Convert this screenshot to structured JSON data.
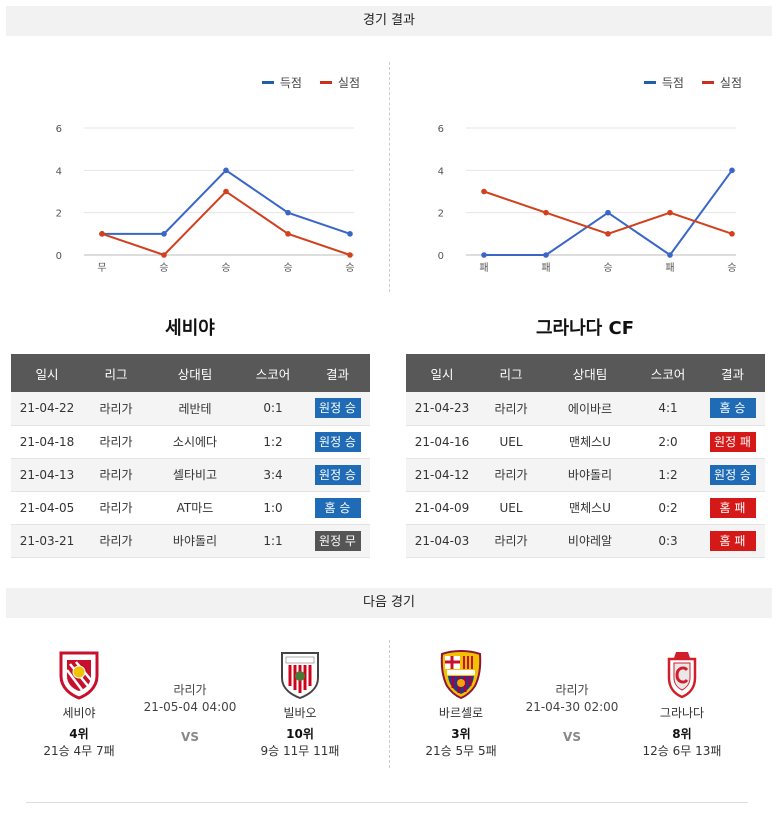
{
  "sections": {
    "results_title": "경기 결과",
    "next_title": "다음 경기"
  },
  "legend": {
    "scored": "득점",
    "conceded": "실점"
  },
  "colors": {
    "scored": "#3a66c8",
    "conceded": "#d2401e",
    "win": "#1f6bb5",
    "loss": "#d51818",
    "draw": "#555555"
  },
  "chart_data": [
    {
      "type": "line",
      "categories": [
        "무",
        "승",
        "승",
        "승",
        "승"
      ],
      "series": [
        {
          "name": "득점",
          "values": [
            1,
            1,
            4,
            2,
            1
          ]
        },
        {
          "name": "실점",
          "values": [
            1,
            0,
            3,
            1,
            0
          ]
        }
      ],
      "ylim": [
        0,
        6
      ],
      "yticks": [
        "0",
        "2",
        "4",
        "6"
      ],
      "grid": true,
      "legend": "top-right"
    },
    {
      "type": "line",
      "categories": [
        "패",
        "패",
        "승",
        "패",
        "승"
      ],
      "series": [
        {
          "name": "득점",
          "values": [
            0,
            0,
            2,
            0,
            4
          ]
        },
        {
          "name": "실점",
          "values": [
            3,
            2,
            1,
            2,
            1
          ]
        }
      ],
      "ylim": [
        0,
        6
      ],
      "yticks": [
        "0",
        "2",
        "4",
        "6"
      ],
      "grid": true,
      "legend": "top-right"
    }
  ],
  "teams": [
    {
      "title": "세비야",
      "headers": [
        "일시",
        "리그",
        "상대팀",
        "스코어",
        "결과"
      ],
      "rows": [
        {
          "date": "21-04-22",
          "league": "라리가",
          "opponent": "레반테",
          "score": "0:1",
          "result": "원정 승",
          "kind": "win"
        },
        {
          "date": "21-04-18",
          "league": "라리가",
          "opponent": "소시에다",
          "score": "1:2",
          "result": "원정 승",
          "kind": "win"
        },
        {
          "date": "21-04-13",
          "league": "라리가",
          "opponent": "셀타비고",
          "score": "3:4",
          "result": "원정 승",
          "kind": "win"
        },
        {
          "date": "21-04-05",
          "league": "라리가",
          "opponent": "AT마드",
          "score": "1:0",
          "result": "홈 승",
          "kind": "win"
        },
        {
          "date": "21-03-21",
          "league": "라리가",
          "opponent": "바야돌리",
          "score": "1:1",
          "result": "원정 무",
          "kind": "draw"
        }
      ]
    },
    {
      "title": "그라나다 CF",
      "headers": [
        "일시",
        "리그",
        "상대팀",
        "스코어",
        "결과"
      ],
      "rows": [
        {
          "date": "21-04-23",
          "league": "라리가",
          "opponent": "에이바르",
          "score": "4:1",
          "result": "홈 승",
          "kind": "win"
        },
        {
          "date": "21-04-16",
          "league": "UEL",
          "opponent": "맨체스U",
          "score": "2:0",
          "result": "원정 패",
          "kind": "loss"
        },
        {
          "date": "21-04-12",
          "league": "라리가",
          "opponent": "바야돌리",
          "score": "1:2",
          "result": "원정 승",
          "kind": "win"
        },
        {
          "date": "21-04-09",
          "league": "UEL",
          "opponent": "맨체스U",
          "score": "0:2",
          "result": "홈 패",
          "kind": "loss"
        },
        {
          "date": "21-04-03",
          "league": "라리가",
          "opponent": "비야레알",
          "score": "0:3",
          "result": "홈 패",
          "kind": "loss"
        }
      ]
    }
  ],
  "next_matches": [
    {
      "league": "라리가",
      "datetime": "21-05-04 04:00",
      "vs": "VS",
      "home": {
        "name": "세비야",
        "rank": "4위",
        "record": "21승 4무 7패",
        "logo": "sevilla-crest-icon"
      },
      "away": {
        "name": "빌바오",
        "rank": "10위",
        "record": "9승 11무 11패",
        "logo": "athletic-club-crest-icon"
      }
    },
    {
      "league": "라리가",
      "datetime": "21-04-30 02:00",
      "vs": "VS",
      "home": {
        "name": "바르셀로",
        "rank": "3위",
        "record": "21승 5무 5패",
        "logo": "barcelona-crest-icon"
      },
      "away": {
        "name": "그라나다",
        "rank": "8위",
        "record": "12승 6무 13패",
        "logo": "granada-crest-icon"
      }
    }
  ]
}
